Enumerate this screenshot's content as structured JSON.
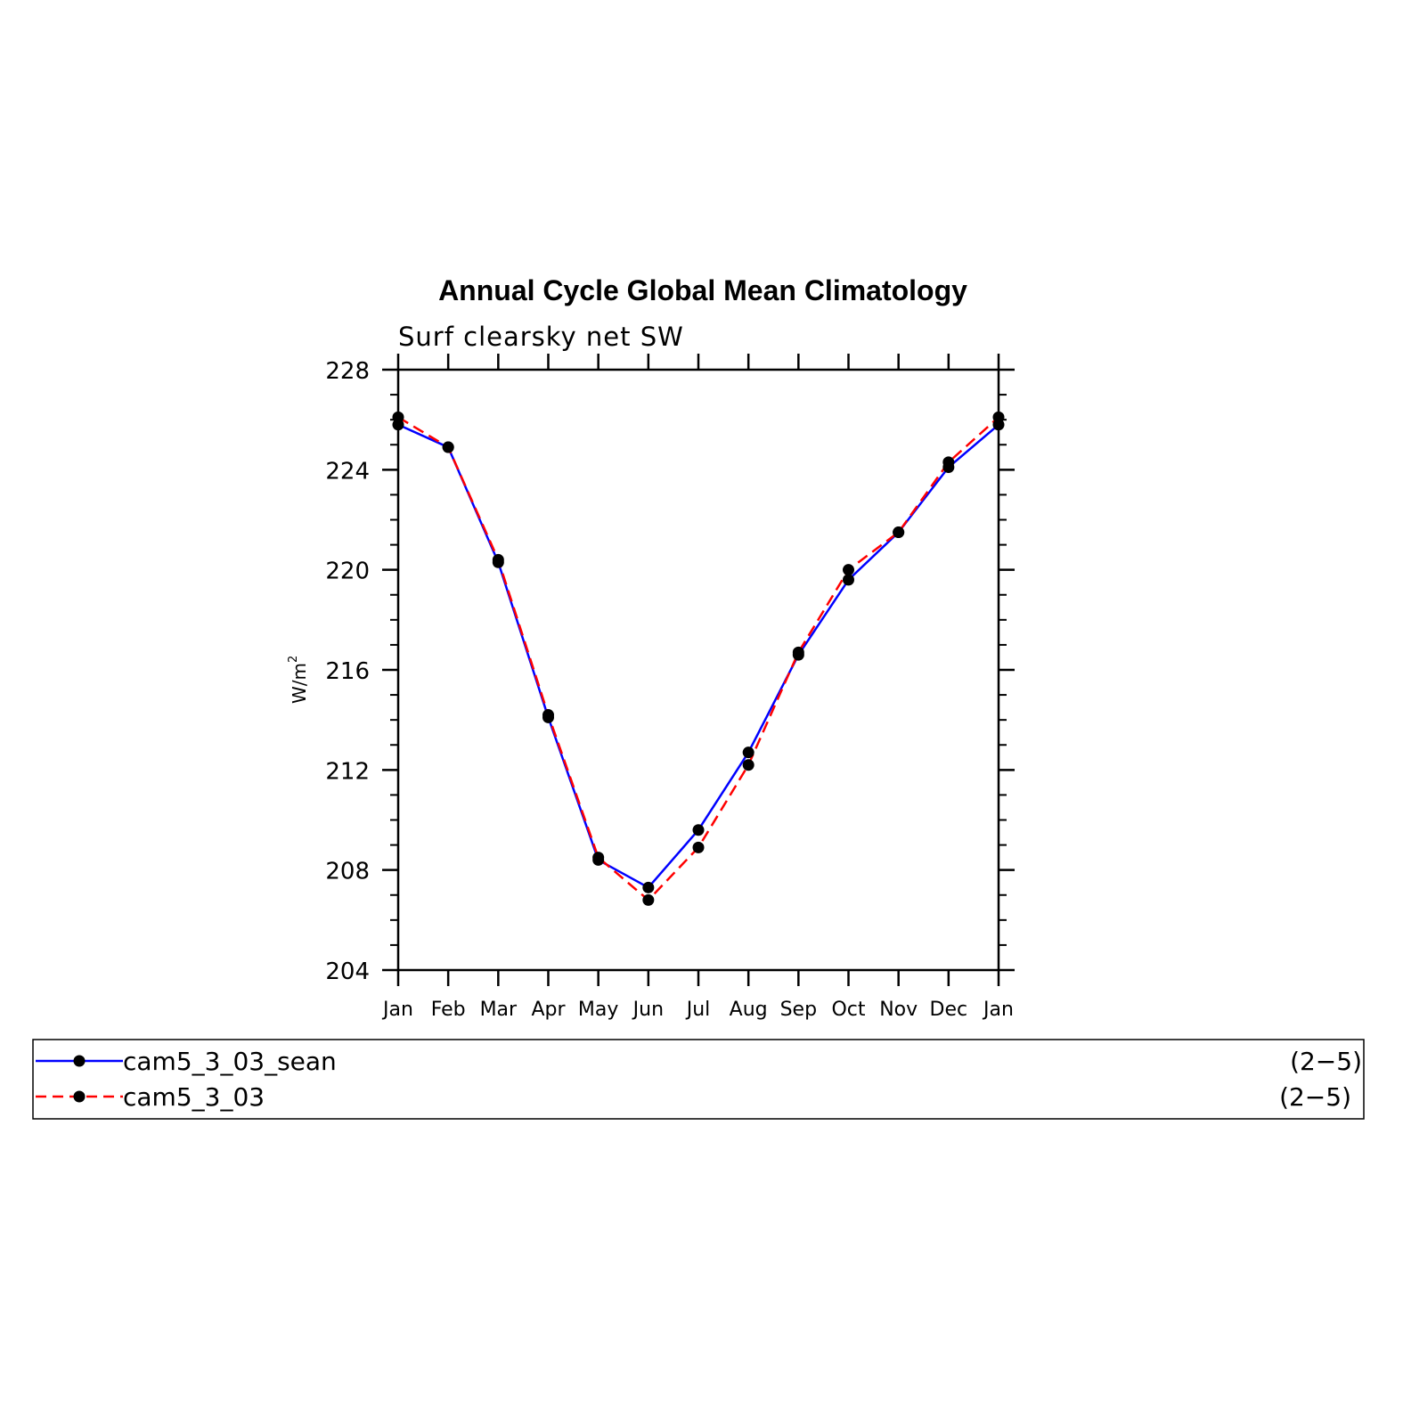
{
  "chart_data": {
    "type": "line",
    "title": "Annual Cycle Global Mean Climatology",
    "subtitle": "Surf clearsky net SW",
    "ylabel": "W/m",
    "ylabel_sup": "2",
    "categories": [
      "Jan",
      "Feb",
      "Mar",
      "Apr",
      "May",
      "Jun",
      "Jul",
      "Aug",
      "Sep",
      "Oct",
      "Nov",
      "Dec",
      "Jan"
    ],
    "ylim": [
      204,
      228
    ],
    "yticks": [
      204,
      208,
      212,
      216,
      220,
      224,
      228
    ],
    "series": [
      {
        "name": "cam5_3_03_sean",
        "range": "(2−5)",
        "color": "#0000ff",
        "dash": "solid",
        "values": [
          225.8,
          224.9,
          220.3,
          214.1,
          208.4,
          207.3,
          209.6,
          212.7,
          216.6,
          219.6,
          221.5,
          224.1,
          225.8
        ]
      },
      {
        "name": "cam5_3_03",
        "range": "(2−5)",
        "color": "#ff0000",
        "dash": "dashed",
        "values": [
          226.1,
          224.9,
          220.4,
          214.2,
          208.5,
          206.8,
          208.9,
          212.2,
          216.7,
          220.0,
          221.5,
          224.3,
          226.1
        ]
      }
    ],
    "grid": false,
    "legend_placement": "bottom"
  }
}
